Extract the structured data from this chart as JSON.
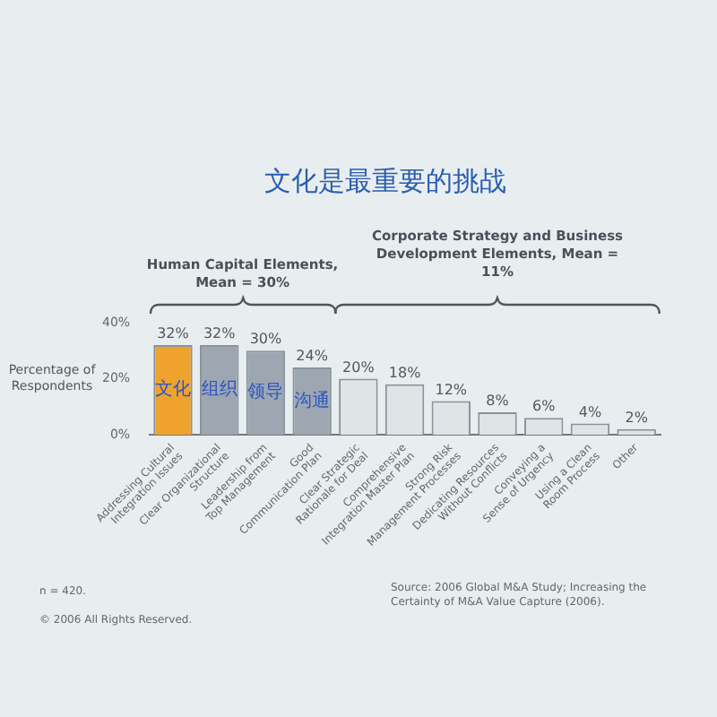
{
  "chart_data": {
    "type": "bar",
    "title": "文化是最重要的挑战",
    "ylabel": "Percentage of Respondents",
    "categories": [
      "Addressing Cultural Integration Issues",
      "Clear Organizational Structure",
      "Leadership from Top Management",
      "Good Communication Plan",
      "Clear Strategic Rationale for Deal",
      "Comprehensive Integration Master Plan",
      "Strong Risk Management Processes",
      "Dedicating Resources Without Conflicts",
      "Conveying a Sense of Urgency",
      "Using a Clean Room Process",
      "Other"
    ],
    "values": [
      32,
      32,
      30,
      24,
      20,
      18,
      12,
      8,
      6,
      4,
      2
    ],
    "colors": [
      "#f0a22e",
      "#9ea6b2",
      "#9ea6b2",
      "#9ea6b2",
      "#dfe5e7",
      "#dfe5e7",
      "#dfe5e7",
      "#dfe5e7",
      "#dfe5e7",
      "#dfe5e7",
      "#dfe5e7"
    ],
    "value_labels": [
      "32%",
      "32%",
      "30%",
      "24%",
      "20%",
      "18%",
      "12%",
      "8%",
      "6%",
      "4%",
      "2%"
    ],
    "ylim": [
      0,
      40
    ],
    "yticks": [
      {
        "value": 0,
        "label": "0%"
      },
      {
        "value": 20,
        "label": "20%"
      },
      {
        "value": 40,
        "label": "40%"
      }
    ],
    "annotations": [
      "Human Capital Elements, Mean = 30%",
      "Corporate Strategy and Business Development Elements, Mean = 11%",
      "文化",
      "组织",
      "领导",
      "沟通",
      "n = 420.",
      "© 2006 All Rights Reserved.",
      "Source: 2006 Global M&A Study; Increasing the Certainty of M&A Value Capture (2006)."
    ]
  }
}
